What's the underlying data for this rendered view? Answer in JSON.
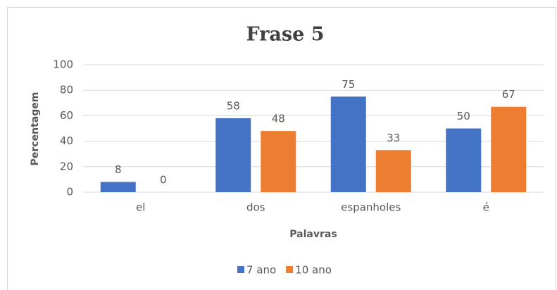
{
  "chart_data": {
    "type": "bar",
    "title": "Frase 5",
    "x_label": "Palavras",
    "y_label": "Percentagem",
    "categories": [
      "el",
      "dos",
      "espanholes",
      "é"
    ],
    "series": [
      {
        "name": "7 ano",
        "color": "#4472c4",
        "values": [
          8,
          58,
          75,
          50
        ]
      },
      {
        "name": "10 ano",
        "color": "#ed7d31",
        "values": [
          0,
          48,
          33,
          67
        ]
      }
    ],
    "ylim": [
      0,
      100
    ],
    "yticks": [
      0,
      20,
      40,
      60,
      80,
      100
    ],
    "grid": true,
    "legend": "bottom",
    "data_labels": true
  }
}
